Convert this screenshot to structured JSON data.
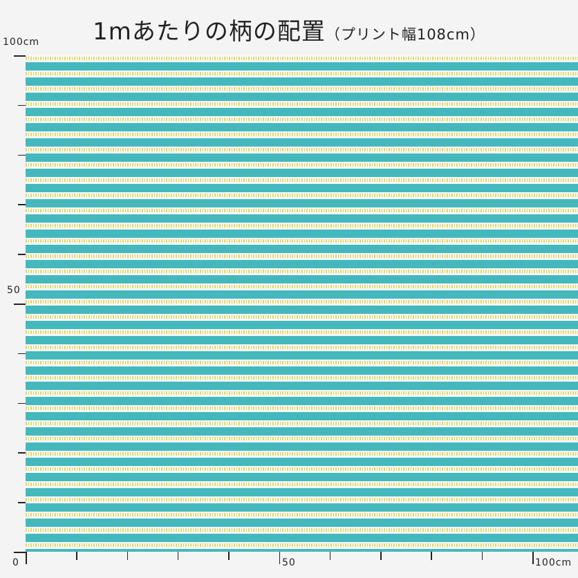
{
  "title": {
    "main": "1mあたりの柄の配置",
    "note": "（プリント幅108cm）"
  },
  "axis": {
    "top_label": "100cm",
    "mid_left_label": "50",
    "origin_label": "0",
    "mid_bottom_label": "50",
    "right_label": "100cm"
  },
  "fabric": {
    "stripe_color": "#45b8bd",
    "ground_color": "#f1fbf9",
    "motif_color": "#f2d35c"
  }
}
